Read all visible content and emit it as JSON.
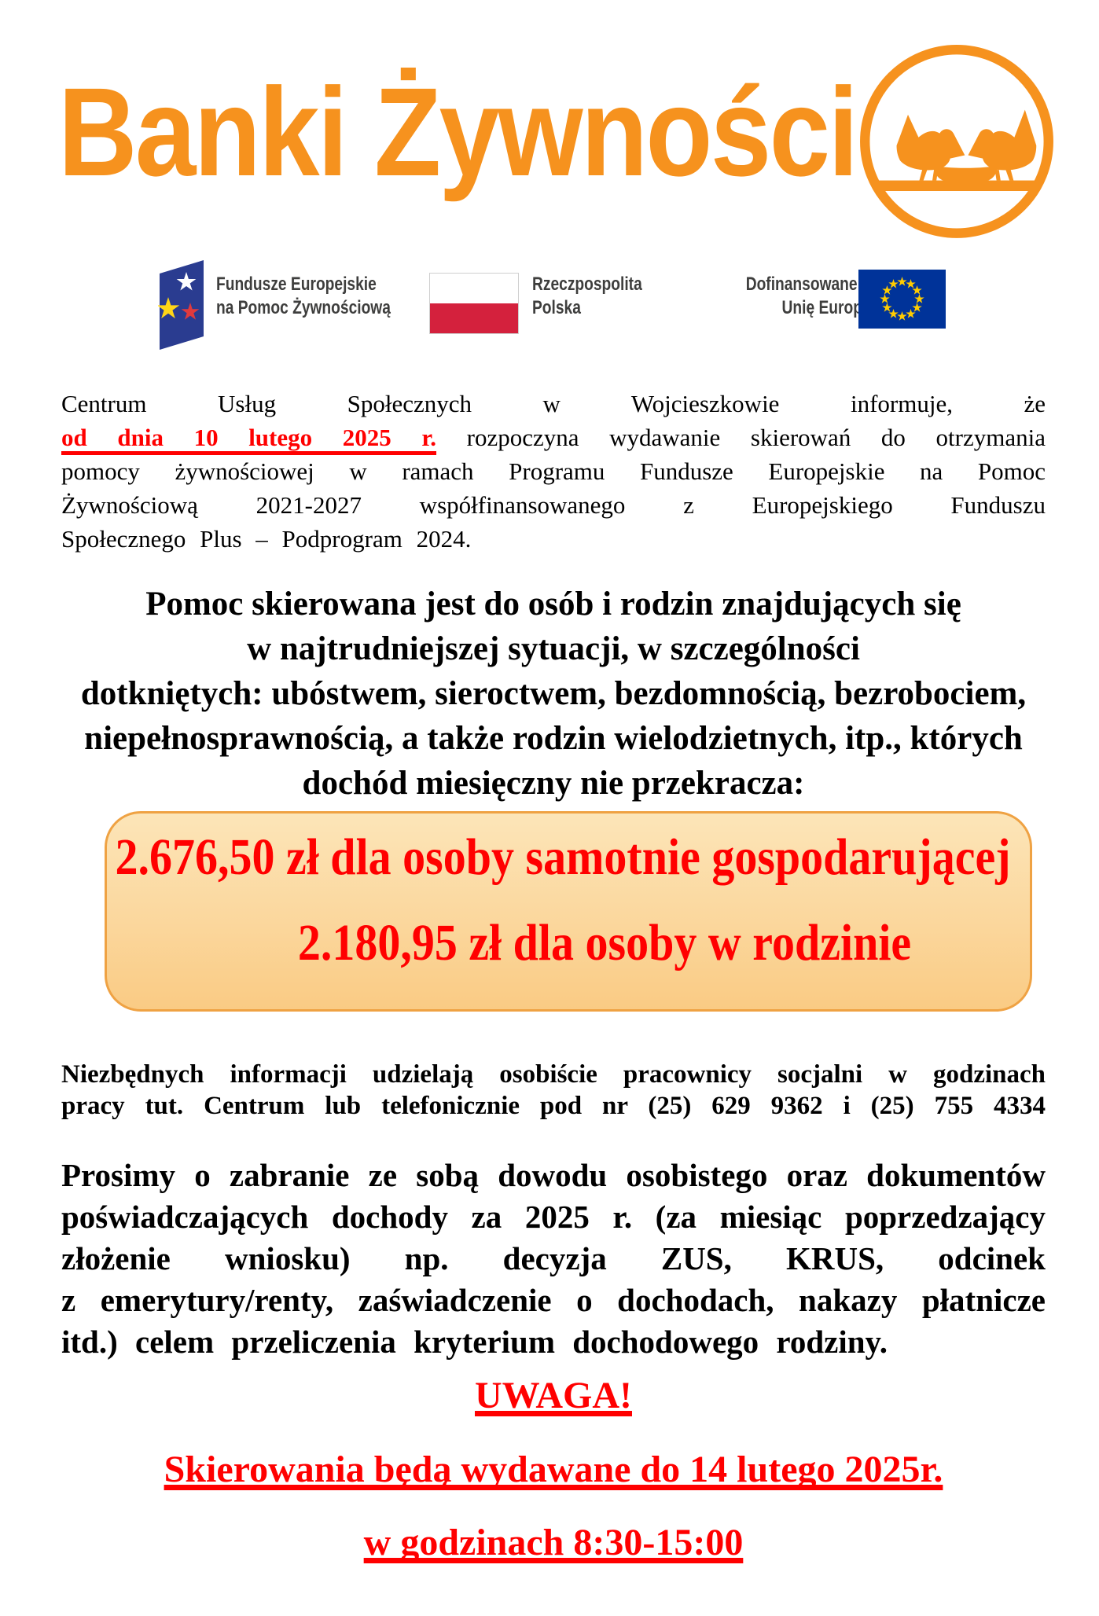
{
  "brand": {
    "logo_text": "Banki Żywności",
    "logo_color": "#F6921E"
  },
  "funding_logos": {
    "fe_label": "Fundusze Europejskie\nna Pomoc Żywnościową",
    "pl_label": "Rzeczpospolita\nPolska",
    "eu_label": "Dofinansowane przez\nUnię Europejską",
    "fe_flag_color": "#2A3C90",
    "pl_flag_red": "#D4213D",
    "eu_flag_blue": "#003399",
    "eu_star_yellow": "#FFCC00"
  },
  "intro": {
    "line1": "Centrum Usług Społecznych w Wojcieszkowie informuje, że",
    "line2_highlight": "od dnia 10 lutego 2025 r.",
    "line2_rest": " rozpoczyna wydawanie skierowań do otrzymania",
    "line3": "pomocy żywnościowej w ramach Programu Fundusze Europejskie na Pomoc",
    "line4": "Żywnościową 2021-2027 współfinansowanego z Europejskiego Funduszu",
    "line5": "Społecznego Plus – Podprogram 2024."
  },
  "criteria": {
    "text": "Pomoc skierowana jest do osób i rodzin znajdujących się\nw najtrudniejszej sytuacji, w szczególności\ndotkniętych: ubóstwem, sieroctwem, bezdomnością, bezrobociem,\nniepełnosprawnością, a także rodzin wielodzietnych, itp., których\ndochód miesięczny nie przekracza:"
  },
  "income_box": {
    "line1": "2.676,50 zł dla osoby samotnie gospodarującej",
    "line2": "2.180,95 zł dla osoby w rodzinie",
    "text_color": "#FF0000",
    "background_top": "#FCE5B8",
    "background_bottom": "#FACB84",
    "border_color": "#EFA243"
  },
  "info": {
    "line1": "Niezbędnych informacji udzielają osobiście pracownicy socjalni w godzinach",
    "line2": "pracy tut. Centrum lub telefonicznie pod nr (25) 629 9362 i (25) 755 4334"
  },
  "request": {
    "lines": [
      "Prosimy o zabranie ze sobą dowodu osobistego oraz dokumentów",
      "poświadczających dochody za 2025 r. (za miesiąc poprzedzający",
      "złożenie wniosku) np. decyzja ZUS, KRUS, odcinek",
      "z emerytury/renty, zaświadczenie o dochodach, nakazy płatnicze",
      "itd.) celem przeliczenia kryterium dochodowego rodziny."
    ]
  },
  "notice": {
    "title": "UWAGA!",
    "line1": "Skierowania będą wydawane do 14 lutego 2025r.",
    "line2": "w godzinach 8:30-15:00"
  }
}
